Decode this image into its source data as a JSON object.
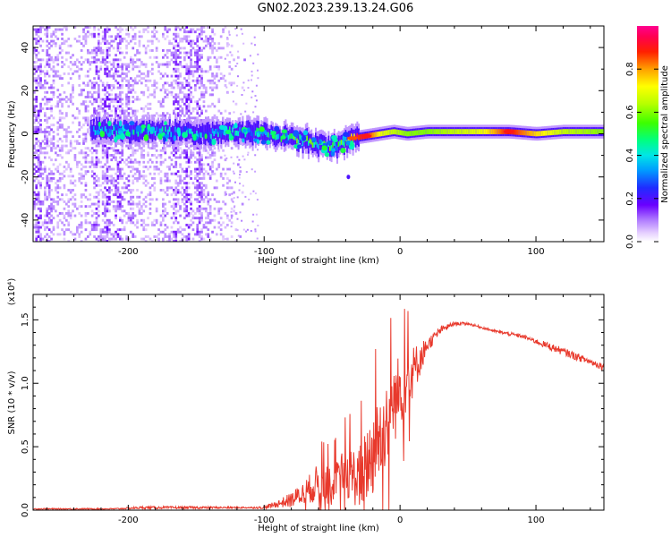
{
  "title": "GN02.2023.239.13.24.G06",
  "chart_data": [
    {
      "type": "heatmap",
      "title": "GN02.2023.239.13.24.G06",
      "xlabel": "Height of straight line (km)",
      "ylabel": "Frequency (Hz)",
      "xlim": [
        -270,
        150
      ],
      "ylim": [
        -50,
        50
      ],
      "x_ticks": [
        -200,
        -100,
        0,
        100
      ],
      "x_tick_labels": [
        "-200",
        "-100",
        "0",
        "100"
      ],
      "y_ticks": [
        -40,
        -20,
        0,
        20,
        40
      ],
      "y_tick_labels": [
        "-40",
        "-20",
        "0",
        "20",
        "40"
      ],
      "colorbar": {
        "label": "Normalized spectral amplitude",
        "range": [
          0.0,
          1.0
        ],
        "ticks": [
          0.0,
          0.2,
          0.4,
          0.6,
          0.8
        ],
        "tick_labels": [
          "0.0",
          "0.2",
          "0.4",
          "0.6",
          "0.8"
        ],
        "colormap": "rainbow (white to purple to blue to cyan to green to yellow to red to magenta)"
      },
      "ridge": {
        "description": "dominant spectral ridge near 0 Hz",
        "x": [
          -225,
          -200,
          -170,
          -140,
          -120,
          -100,
          -80,
          -65,
          -55,
          -45,
          -35,
          -25,
          -15,
          -5,
          5,
          20,
          40,
          60,
          80,
          100,
          120,
          150
        ],
        "frequency": [
          2,
          1,
          1,
          0,
          1,
          0,
          -2,
          -4,
          -6,
          -5,
          -2,
          -1,
          0,
          1,
          0,
          1,
          1,
          1,
          1,
          0,
          1,
          1
        ],
        "amplitude": [
          0.3,
          0.35,
          0.35,
          0.3,
          0.35,
          0.35,
          0.45,
          0.5,
          0.45,
          0.45,
          0.85,
          0.9,
          0.7,
          0.65,
          0.6,
          0.6,
          0.65,
          0.7,
          0.9,
          0.75,
          0.65,
          0.6
        ]
      },
      "noise_region": {
        "description": "broadband low-amplitude noise across all frequencies",
        "x_range": [
          -270,
          -115
        ],
        "frequency_range": [
          -50,
          50
        ],
        "amplitude_range": [
          0.0,
          0.15
        ]
      }
    },
    {
      "type": "line",
      "xlabel": "Height of straight line (km)",
      "ylabel": "SNR (10 * v/v)",
      "y_scale_note": "(x10⁴)",
      "xlim": [
        -270,
        150
      ],
      "ylim": [
        0.0,
        1.7
      ],
      "x_ticks": [
        -200,
        -100,
        0,
        100
      ],
      "x_tick_labels": [
        "-200",
        "-100",
        "0",
        "100"
      ],
      "y_ticks": [
        0.0,
        0.5,
        1.0,
        1.5
      ],
      "y_tick_labels": [
        "0.0",
        "0.5",
        "1.0",
        "1.5"
      ],
      "series": [
        {
          "color": "#e8392c",
          "x": [
            -270,
            -250,
            -230,
            -210,
            -190,
            -170,
            -150,
            -130,
            -110,
            -100,
            -90,
            -80,
            -70,
            -60,
            -50,
            -40,
            -30,
            -20,
            -10,
            0,
            10,
            20,
            30,
            40,
            50,
            60,
            70,
            80,
            90,
            100,
            110,
            120,
            130,
            140,
            150
          ],
          "y": [
            0.01,
            0.01,
            0.01,
            0.01,
            0.02,
            0.02,
            0.02,
            0.02,
            0.02,
            0.02,
            0.05,
            0.08,
            0.14,
            0.22,
            0.18,
            0.3,
            0.25,
            0.45,
            0.7,
            0.95,
            1.1,
            1.3,
            1.42,
            1.47,
            1.47,
            1.44,
            1.41,
            1.39,
            1.37,
            1.33,
            1.29,
            1.25,
            1.21,
            1.17,
            1.13
          ],
          "noise_amplitude": [
            0.005,
            0.005,
            0.005,
            0.005,
            0.01,
            0.01,
            0.01,
            0.008,
            0.006,
            0.01,
            0.03,
            0.06,
            0.1,
            0.15,
            0.15,
            0.2,
            0.25,
            0.35,
            0.35,
            0.3,
            0.2,
            0.06,
            0.03,
            0.015,
            0.01,
            0.01,
            0.01,
            0.015,
            0.015,
            0.02,
            0.03,
            0.03,
            0.03,
            0.025,
            0.03
          ]
        }
      ]
    }
  ]
}
